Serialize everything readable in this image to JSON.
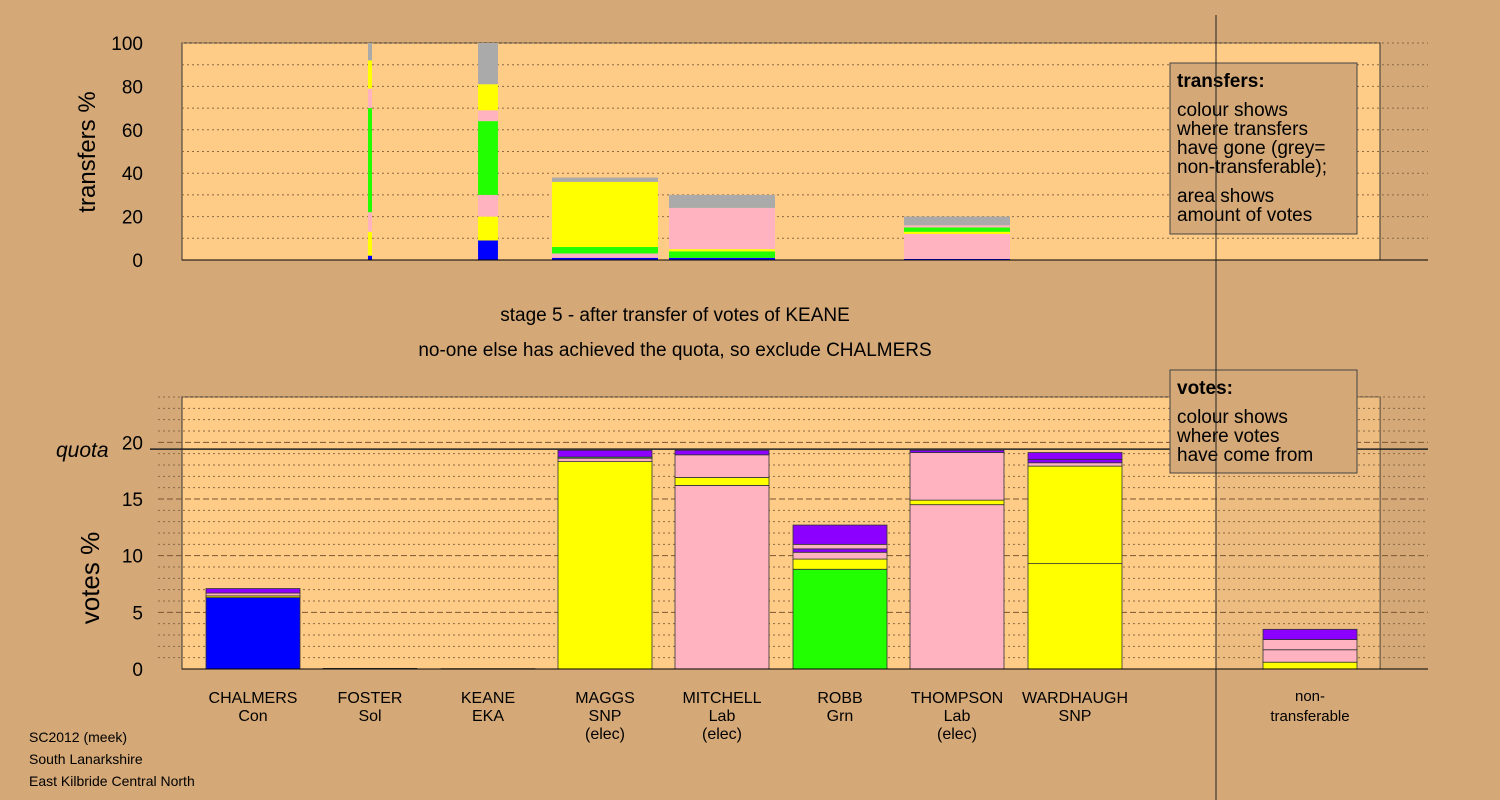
{
  "colors": {
    "background": "#d4a877",
    "panel": "#ffcc88",
    "Con": "#0000ff",
    "SNP": "#ffff00",
    "Lab": "#ffb3c1",
    "Grn": "#22ff00",
    "Sol": "#8b00ff",
    "EKA": "#8b00ff",
    "nontransferable": "#aaaaaa"
  },
  "caption": {
    "line1": "stage 5 - after transfer of votes of KEANE",
    "line2": "no-one else has achieved the quota, so exclude CHALMERS"
  },
  "footer": {
    "line1": "SC2012 (meek)",
    "line2": "South Lanarkshire",
    "line3": "East Kilbride Central North"
  },
  "chart_data": [
    {
      "type": "bar",
      "ylabel": "transfers %",
      "ylim": [
        0,
        100
      ],
      "yticks": [
        0,
        20,
        40,
        60,
        80,
        100
      ],
      "legend": {
        "title": "transfers:",
        "lines": [
          "colour shows",
          "where transfers",
          "have gone (grey=",
          "non-transferable);",
          "area shows",
          "amount of votes"
        ]
      },
      "columns": [
        {
          "candidate": "FOSTER",
          "width_share": 0.003,
          "segments": [
            {
              "party": "Con",
              "to": 2
            },
            {
              "party": "SNP",
              "to": 13
            },
            {
              "party": "Lab",
              "to": 22
            },
            {
              "party": "Grn",
              "to": 70
            },
            {
              "party": "Lab",
              "to": 79
            },
            {
              "party": "SNP",
              "to": 92
            },
            {
              "party": "nontransferable",
              "to": 100
            }
          ]
        },
        {
          "candidate": "KEANE",
          "width_share": 0.02,
          "segments": [
            {
              "party": "Con",
              "to": 9
            },
            {
              "party": "SNP",
              "to": 20
            },
            {
              "party": "Lab",
              "to": 30
            },
            {
              "party": "Grn",
              "to": 64
            },
            {
              "party": "Lab",
              "to": 69
            },
            {
              "party": "SNP",
              "to": 81
            },
            {
              "party": "nontransferable",
              "to": 100
            }
          ]
        },
        {
          "candidate": "MAGGS",
          "width_share": 1,
          "segments": [
            {
              "party": "Con",
              "to": 1
            },
            {
              "party": "Lab",
              "to": 3
            },
            {
              "party": "Grn",
              "to": 6
            },
            {
              "party": "SNP",
              "to": 36
            },
            {
              "party": "nontransferable",
              "to": 38
            }
          ]
        },
        {
          "candidate": "MITCHELL",
          "width_share": 1,
          "segments": [
            {
              "party": "Con",
              "to": 1
            },
            {
              "party": "Grn",
              "to": 4
            },
            {
              "party": "SNP",
              "to": 5
            },
            {
              "party": "Lab",
              "to": 24
            },
            {
              "party": "nontransferable",
              "to": 30
            }
          ]
        },
        {
          "candidate": "THOMPSON",
          "width_share": 1,
          "segments": [
            {
              "party": "Con",
              "to": 0.5
            },
            {
              "party": "Lab",
              "to": 12
            },
            {
              "party": "SNP",
              "to": 13
            },
            {
              "party": "Grn",
              "to": 15
            },
            {
              "party": "Lab",
              "to": 16
            },
            {
              "party": "nontransferable",
              "to": 20
            }
          ]
        }
      ]
    },
    {
      "type": "bar",
      "ylabel": "votes %",
      "ylim": [
        0,
        24
      ],
      "yticks": [
        0,
        5,
        10,
        15,
        20
      ],
      "quota": 19.4,
      "quota_label": "quota",
      "legend": {
        "title": "votes:",
        "lines": [
          "colour shows",
          "where votes",
          "have come from"
        ]
      },
      "categories": [
        {
          "name": "CHALMERS",
          "party": "Con",
          "note": ""
        },
        {
          "name": "FOSTER",
          "party": "Sol",
          "note": ""
        },
        {
          "name": "KEANE",
          "party": "EKA",
          "note": ""
        },
        {
          "name": "MAGGS",
          "party": "SNP",
          "note": "(elec)"
        },
        {
          "name": "MITCHELL",
          "party": "Lab",
          "note": "(elec)"
        },
        {
          "name": "ROBB",
          "party": "Grn",
          "note": ""
        },
        {
          "name": "THOMPSON",
          "party": "Lab",
          "note": "(elec)"
        },
        {
          "name": "WARDHAUGH",
          "party": "SNP",
          "note": ""
        }
      ],
      "nontransferable_label": [
        "non-",
        "transferable"
      ],
      "stacks": [
        {
          "candidate": "CHALMERS",
          "segments": [
            {
              "party": "Con",
              "to": 6.3
            },
            {
              "party": "SNP",
              "to": 6.45
            },
            {
              "party": "Lab",
              "to": 6.7
            },
            {
              "party": "Sol",
              "to": 7.1
            }
          ]
        },
        {
          "candidate": "FOSTER",
          "segments": [
            {
              "party": "Sol",
              "to": 0.05
            }
          ]
        },
        {
          "candidate": "KEANE",
          "segments": [
            {
              "party": "EKA",
              "to": 0.03
            }
          ]
        },
        {
          "candidate": "MAGGS",
          "segments": [
            {
              "party": "SNP",
              "to": 18.3
            },
            {
              "party": "Lab",
              "to": 18.6
            },
            {
              "party": "Grn",
              "to": 18.7
            },
            {
              "party": "Sol",
              "to": 19.3
            }
          ]
        },
        {
          "candidate": "MITCHELL",
          "segments": [
            {
              "party": "Lab",
              "to": 16.2
            },
            {
              "party": "SNP",
              "to": 16.9
            },
            {
              "party": "Lab",
              "to": 18.9
            },
            {
              "party": "Sol",
              "to": 19.3
            }
          ]
        },
        {
          "candidate": "ROBB",
          "segments": [
            {
              "party": "Grn",
              "to": 8.8
            },
            {
              "party": "SNP",
              "to": 9.7
            },
            {
              "party": "Lab",
              "to": 10.3
            },
            {
              "party": "Sol",
              "to": 10.6
            },
            {
              "party": "Lab",
              "to": 11
            },
            {
              "party": "Sol",
              "to": 12.7
            }
          ]
        },
        {
          "candidate": "THOMPSON",
          "segments": [
            {
              "party": "Lab",
              "to": 14.5
            },
            {
              "party": "SNP",
              "to": 14.9
            },
            {
              "party": "Lab",
              "to": 19.1
            },
            {
              "party": "Sol",
              "to": 19.3
            }
          ]
        },
        {
          "candidate": "WARDHAUGH",
          "segments": [
            {
              "party": "SNP",
              "to": 9.3
            },
            {
              "party": "SNP",
              "to": 17.9
            },
            {
              "party": "Lab",
              "to": 18.2
            },
            {
              "party": "Sol",
              "to": 18.5
            },
            {
              "party": "Sol",
              "to": 19.1
            }
          ]
        },
        {
          "candidate": "non-transferable",
          "segments": [
            {
              "party": "SNP",
              "to": 0.6
            },
            {
              "party": "Lab",
              "to": 1.7
            },
            {
              "party": "Lab",
              "to": 2.6
            },
            {
              "party": "Sol",
              "to": 3.5
            }
          ]
        }
      ]
    }
  ]
}
